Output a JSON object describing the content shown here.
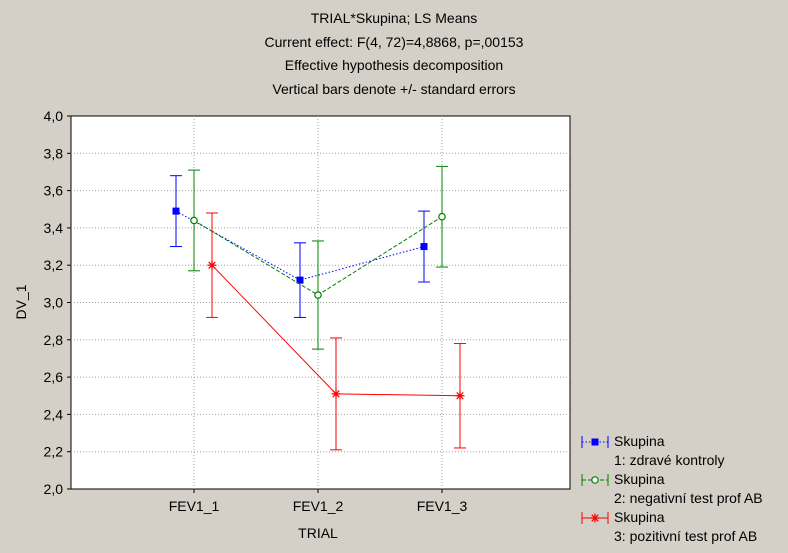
{
  "chart_data": {
    "type": "line",
    "title_lines": [
      "TRIAL*Skupina; LS Means",
      "Current effect: F(4, 72)=4,8868, p=,00153",
      "Effective hypothesis decomposition",
      "Vertical bars denote +/- standard errors"
    ],
    "xlabel": "TRIAL",
    "ylabel": "DV_1",
    "categories": [
      "FEV1_1",
      "FEV1_2",
      "FEV1_3"
    ],
    "ylim": [
      2.0,
      4.0
    ],
    "yticks": [
      "2,0",
      "2,2",
      "2,4",
      "2,6",
      "2,8",
      "3,0",
      "3,2",
      "3,4",
      "3,6",
      "3,8",
      "4,0"
    ],
    "grid": true,
    "legend_position": "bottom-right",
    "series": [
      {
        "legend_name": "Skupina",
        "legend_sub": "1: zdravé kontroly",
        "color": "#0000ff",
        "marker": "square",
        "line": "dotted",
        "values": [
          3.49,
          3.12,
          3.3
        ],
        "errors": [
          0.19,
          0.2,
          0.19
        ]
      },
      {
        "legend_name": "Skupina",
        "legend_sub": "2: negativní test prof AB",
        "color": "#008000",
        "marker": "circle",
        "line": "dashed",
        "values": [
          3.44,
          3.04,
          3.46
        ],
        "errors": [
          0.27,
          0.29,
          0.27
        ]
      },
      {
        "legend_name": "Skupina",
        "legend_sub": "3: pozitivní test prof AB",
        "color": "#ff0000",
        "marker": "star",
        "line": "solid",
        "values": [
          3.2,
          2.51,
          2.5
        ],
        "errors": [
          0.28,
          0.3,
          0.28
        ]
      }
    ]
  }
}
